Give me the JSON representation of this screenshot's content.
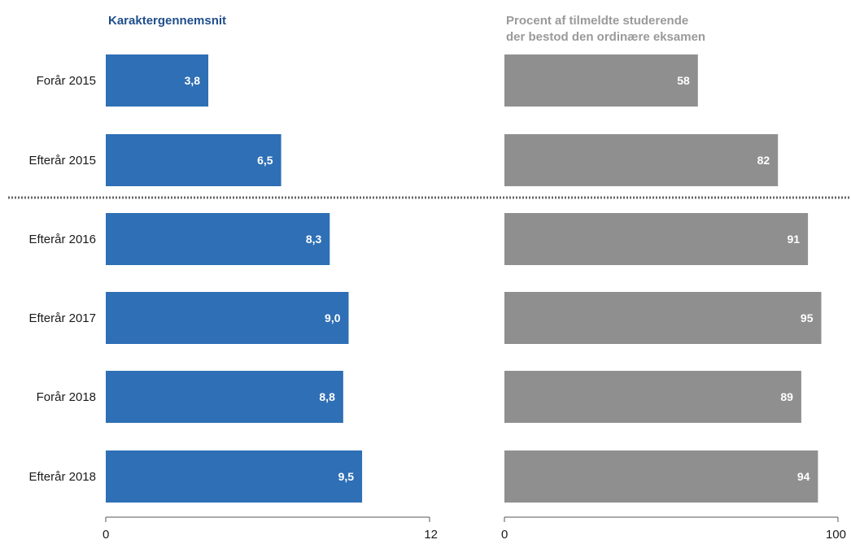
{
  "chart_data": [
    {
      "type": "bar",
      "orientation": "horizontal",
      "title": "Karaktergennemsnit",
      "title_lines": [
        "Karaktergennemsnit"
      ],
      "categories": [
        "Forår 2015",
        "Efterår 2015",
        "Efterår 2016",
        "Efterår 2017",
        "Forår 2018",
        "Efterår 2018"
      ],
      "values": [
        3.8,
        6.5,
        8.3,
        9.0,
        8.8,
        9.5
      ],
      "value_labels": [
        "3,8",
        "6,5",
        "8,3",
        "9,0",
        "8,8",
        "9,5"
      ],
      "xlim": [
        0,
        12
      ],
      "tick_labels": [
        "0",
        "12"
      ],
      "color": "#2e6fb5",
      "title_color": "#1f4e8c",
      "grid": false
    },
    {
      "type": "bar",
      "orientation": "horizontal",
      "title": "Procent af tilmeldte studerende der bestod den ordinære eksamen",
      "title_lines": [
        "Procent af tilmeldte studerende",
        "der bestod den ordinære eksamen"
      ],
      "categories": [
        "Forår 2015",
        "Efterår 2015",
        "Efterår 2016",
        "Efterår 2017",
        "Forår 2018",
        "Efterår 2018"
      ],
      "values": [
        58,
        82,
        91,
        95,
        89,
        94
      ],
      "value_labels": [
        "58",
        "82",
        "91",
        "95",
        "89",
        "94"
      ],
      "xlim": [
        0,
        100
      ],
      "tick_labels": [
        "0",
        "100"
      ],
      "color": "#8f8f8f",
      "title_color": "#9a9a9a",
      "grid": false
    }
  ],
  "separator_after_category": "Efterår 2015"
}
